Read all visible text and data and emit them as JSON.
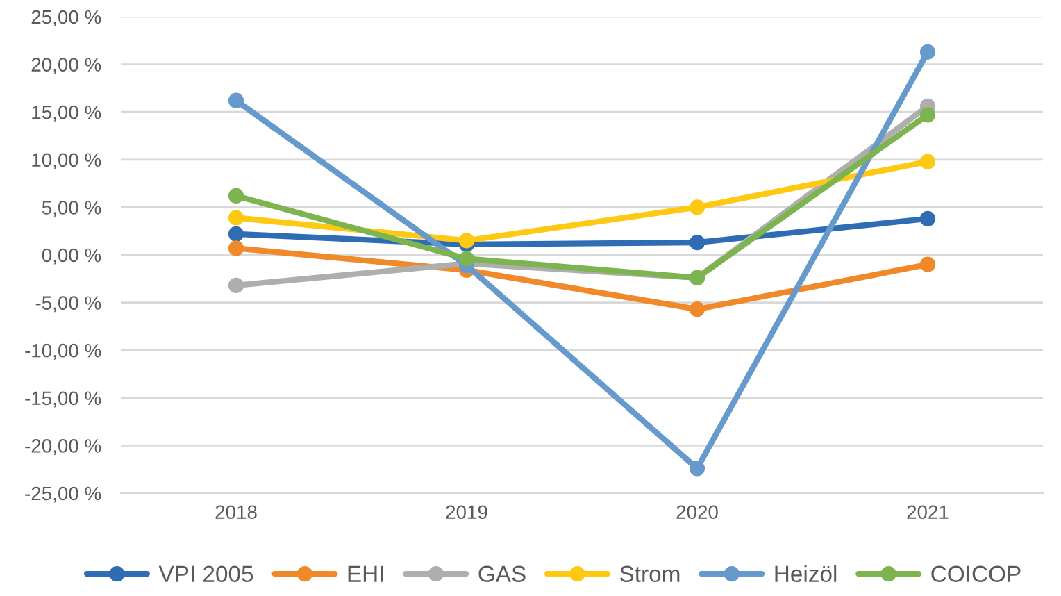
{
  "chart_data": {
    "type": "line",
    "categories": [
      "2018",
      "2019",
      "2020",
      "2021"
    ],
    "series": [
      {
        "name": "VPI 2005",
        "color": "#2e6db4",
        "values": [
          2.2,
          1.1,
          1.3,
          3.8
        ]
      },
      {
        "name": "EHI",
        "color": "#f0892a",
        "values": [
          0.7,
          -1.6,
          -5.7,
          -1.0
        ]
      },
      {
        "name": "GAS",
        "color": "#aeaeae",
        "values": [
          -3.2,
          -0.9,
          -2.4,
          15.6
        ]
      },
      {
        "name": "Strom",
        "color": "#fdc913",
        "values": [
          3.9,
          1.5,
          5.0,
          9.8
        ]
      },
      {
        "name": "Heizöl",
        "color": "#6699cc",
        "values": [
          16.2,
          -1.1,
          -22.4,
          21.3
        ]
      },
      {
        "name": "COICOP",
        "color": "#7db450",
        "values": [
          6.2,
          -0.4,
          -2.4,
          14.7
        ]
      }
    ],
    "ylim": [
      -25,
      25
    ],
    "yticks": [
      {
        "value": 25,
        "label": "25,00 %"
      },
      {
        "value": 20,
        "label": "20,00 %"
      },
      {
        "value": 15,
        "label": "15,00 %"
      },
      {
        "value": 10,
        "label": "10,00 %"
      },
      {
        "value": 5,
        "label": "5,00 %"
      },
      {
        "value": 0,
        "label": "0,00 %"
      },
      {
        "value": -5,
        "label": "-5,00 %"
      },
      {
        "value": -10,
        "label": "-10,00 %"
      },
      {
        "value": -15,
        "label": "-15,00 %"
      },
      {
        "value": -20,
        "label": "-20,00 %"
      },
      {
        "value": -25,
        "label": "-25,00 %"
      }
    ],
    "grid": "y",
    "legend": "bottom",
    "marker": "circle",
    "line_style": "solid"
  }
}
